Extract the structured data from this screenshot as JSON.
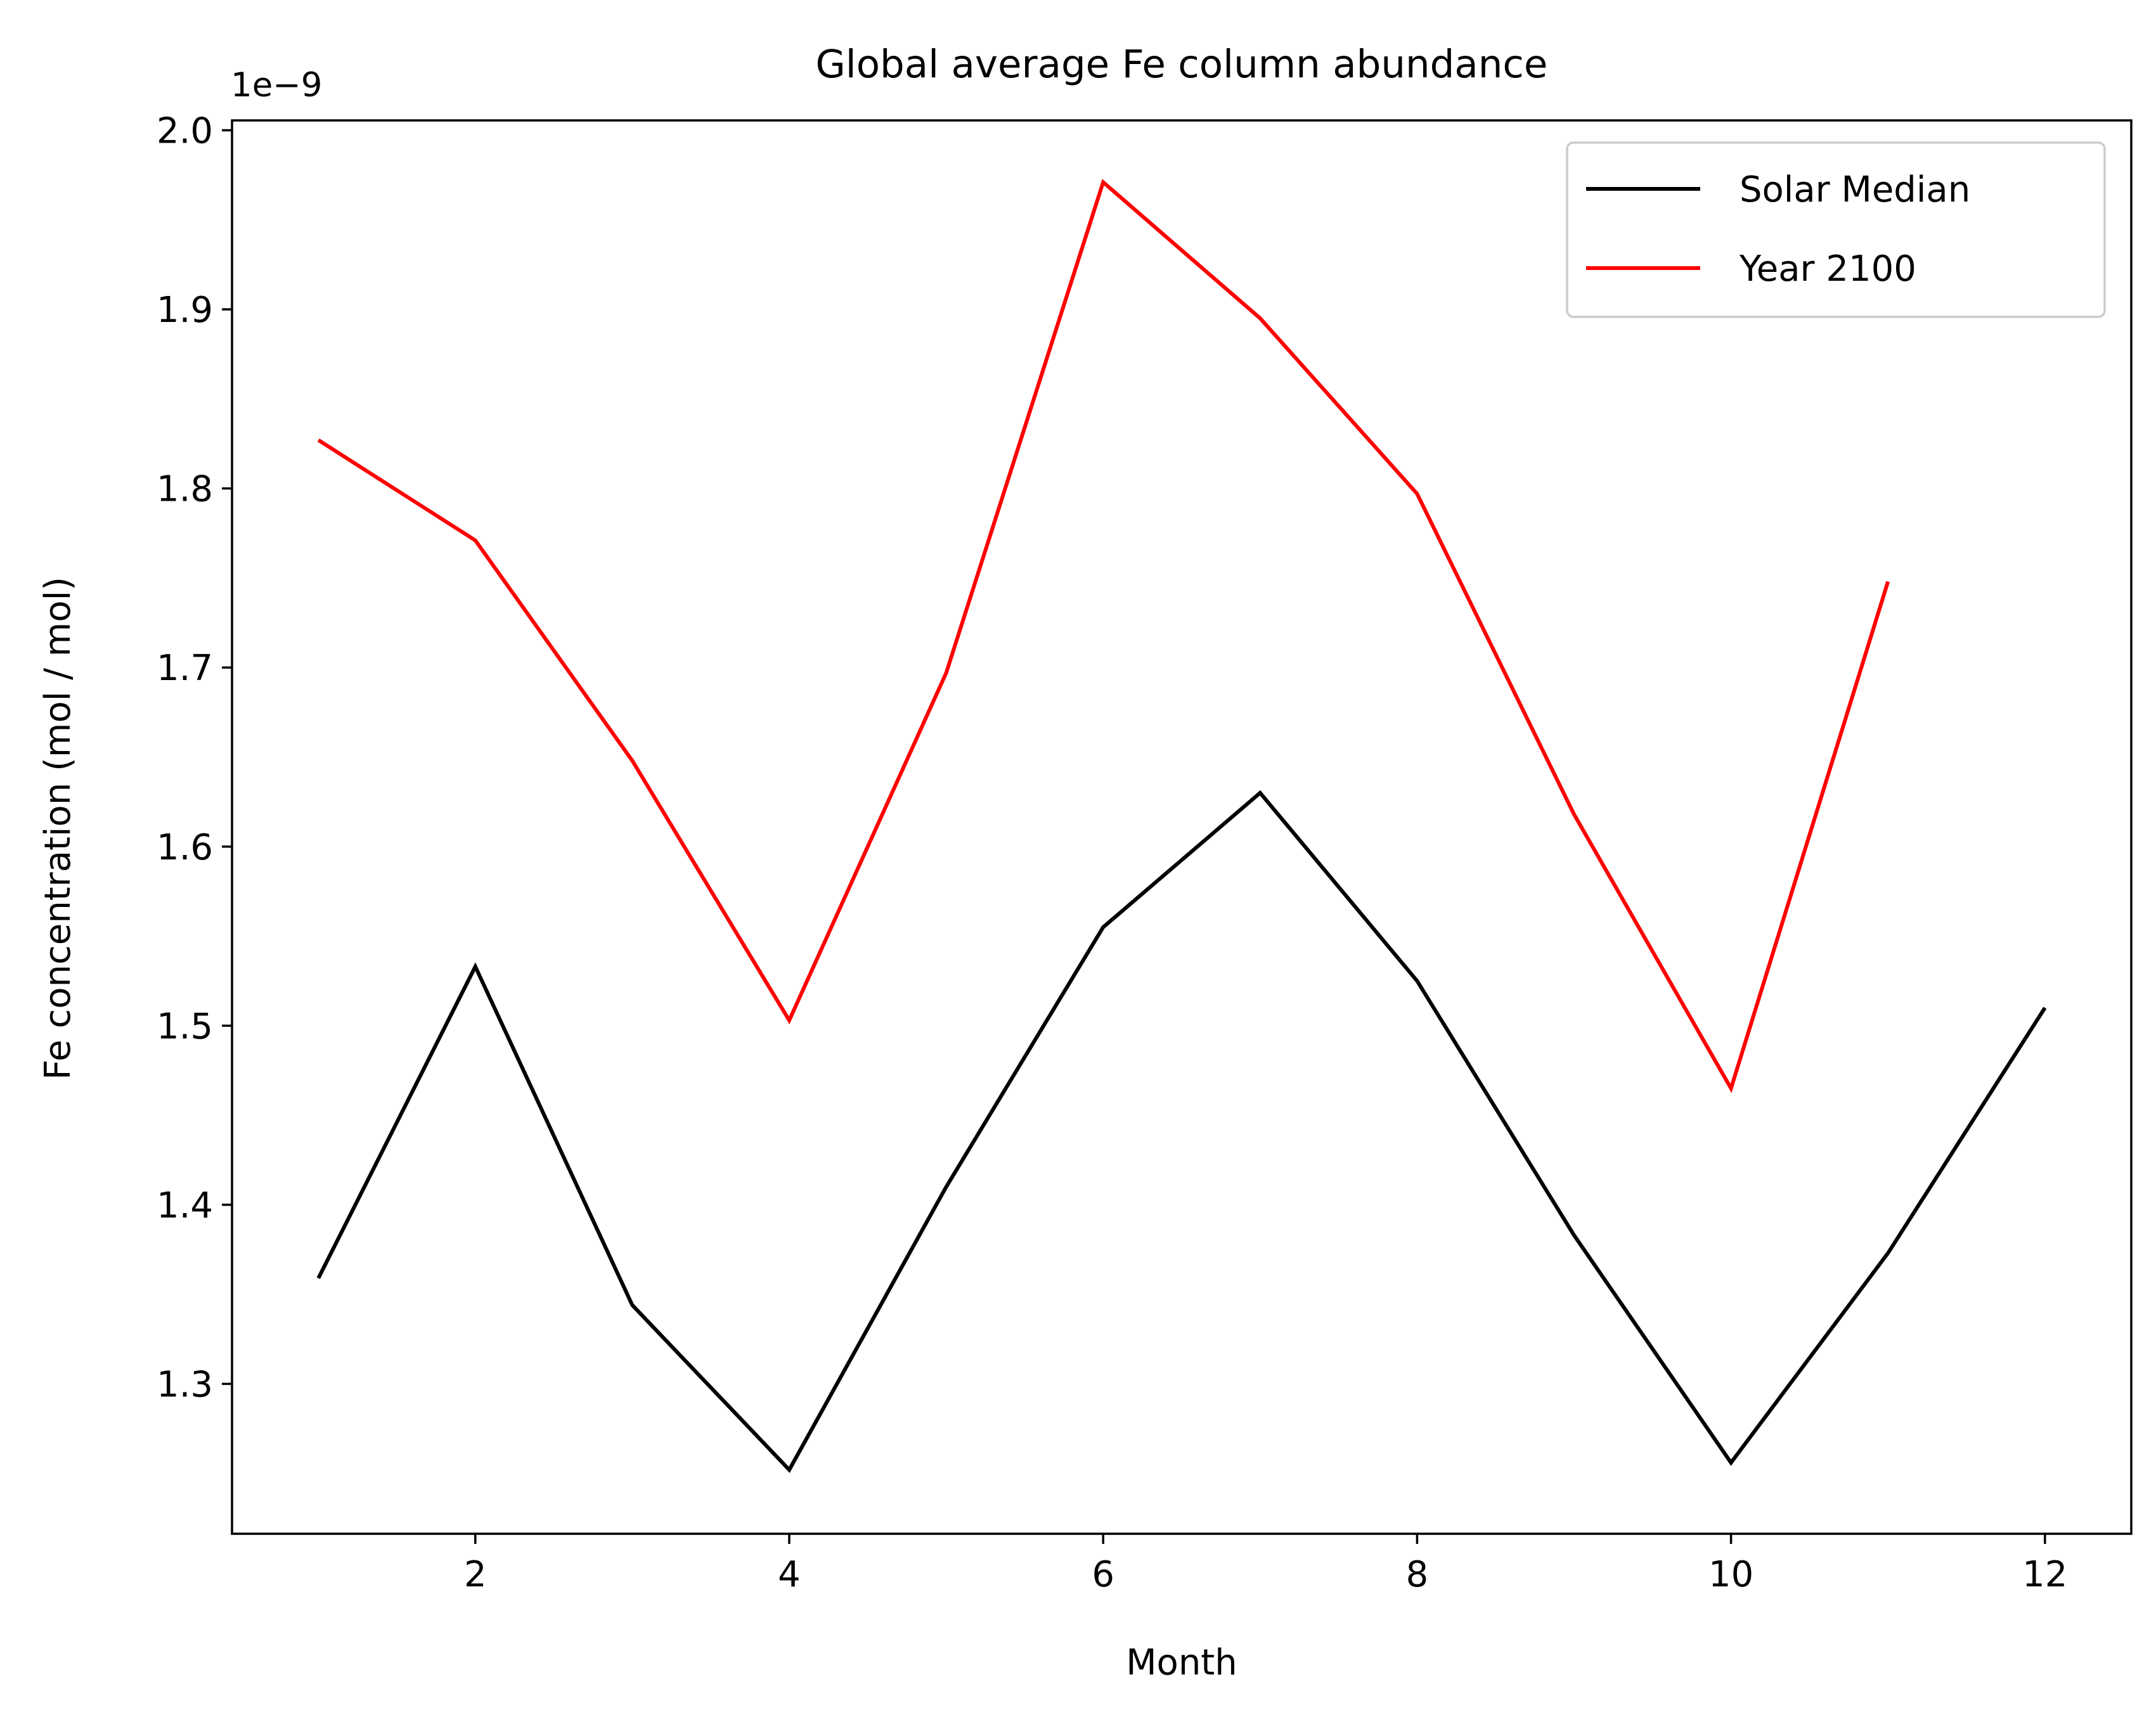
{
  "chart_data": {
    "type": "line",
    "title": "Global average Fe column abundance",
    "xlabel": "Month",
    "ylabel": "Fe concentration (mol / mol)",
    "y_offset_label": "1e−9",
    "xlim": [
      0.45,
      12.55
    ],
    "ylim": [
      1.2163,
      2.0055
    ],
    "x_ticks": [
      2,
      4,
      6,
      8,
      10,
      12
    ],
    "x_tick_labels": [
      "2",
      "4",
      "6",
      "8",
      "10",
      "12"
    ],
    "y_ticks": [
      1.3,
      1.4,
      1.5,
      1.6,
      1.7,
      1.8,
      1.9,
      2.0
    ],
    "y_tick_labels": [
      "1.3",
      "1.4",
      "1.5",
      "1.6",
      "1.7",
      "1.8",
      "1.9",
      "2.0"
    ],
    "grid": false,
    "legend_position": "top-right",
    "series": [
      {
        "name": "Solar Median",
        "color": "#000000",
        "x": [
          1,
          2,
          3,
          4,
          5,
          6,
          7,
          8,
          9,
          10,
          11,
          12
        ],
        "y": [
          1.359,
          1.533,
          1.344,
          1.252,
          1.41,
          1.555,
          1.63,
          1.525,
          1.383,
          1.256,
          1.373,
          1.51
        ]
      },
      {
        "name": "Year 2100",
        "color": "#ff0000",
        "x": [
          1,
          2,
          3,
          4,
          5,
          6,
          7,
          8,
          9,
          10,
          11
        ],
        "y": [
          1.827,
          1.771,
          1.648,
          1.503,
          1.697,
          1.971,
          1.895,
          1.797,
          1.618,
          1.465,
          1.748
        ]
      }
    ]
  }
}
